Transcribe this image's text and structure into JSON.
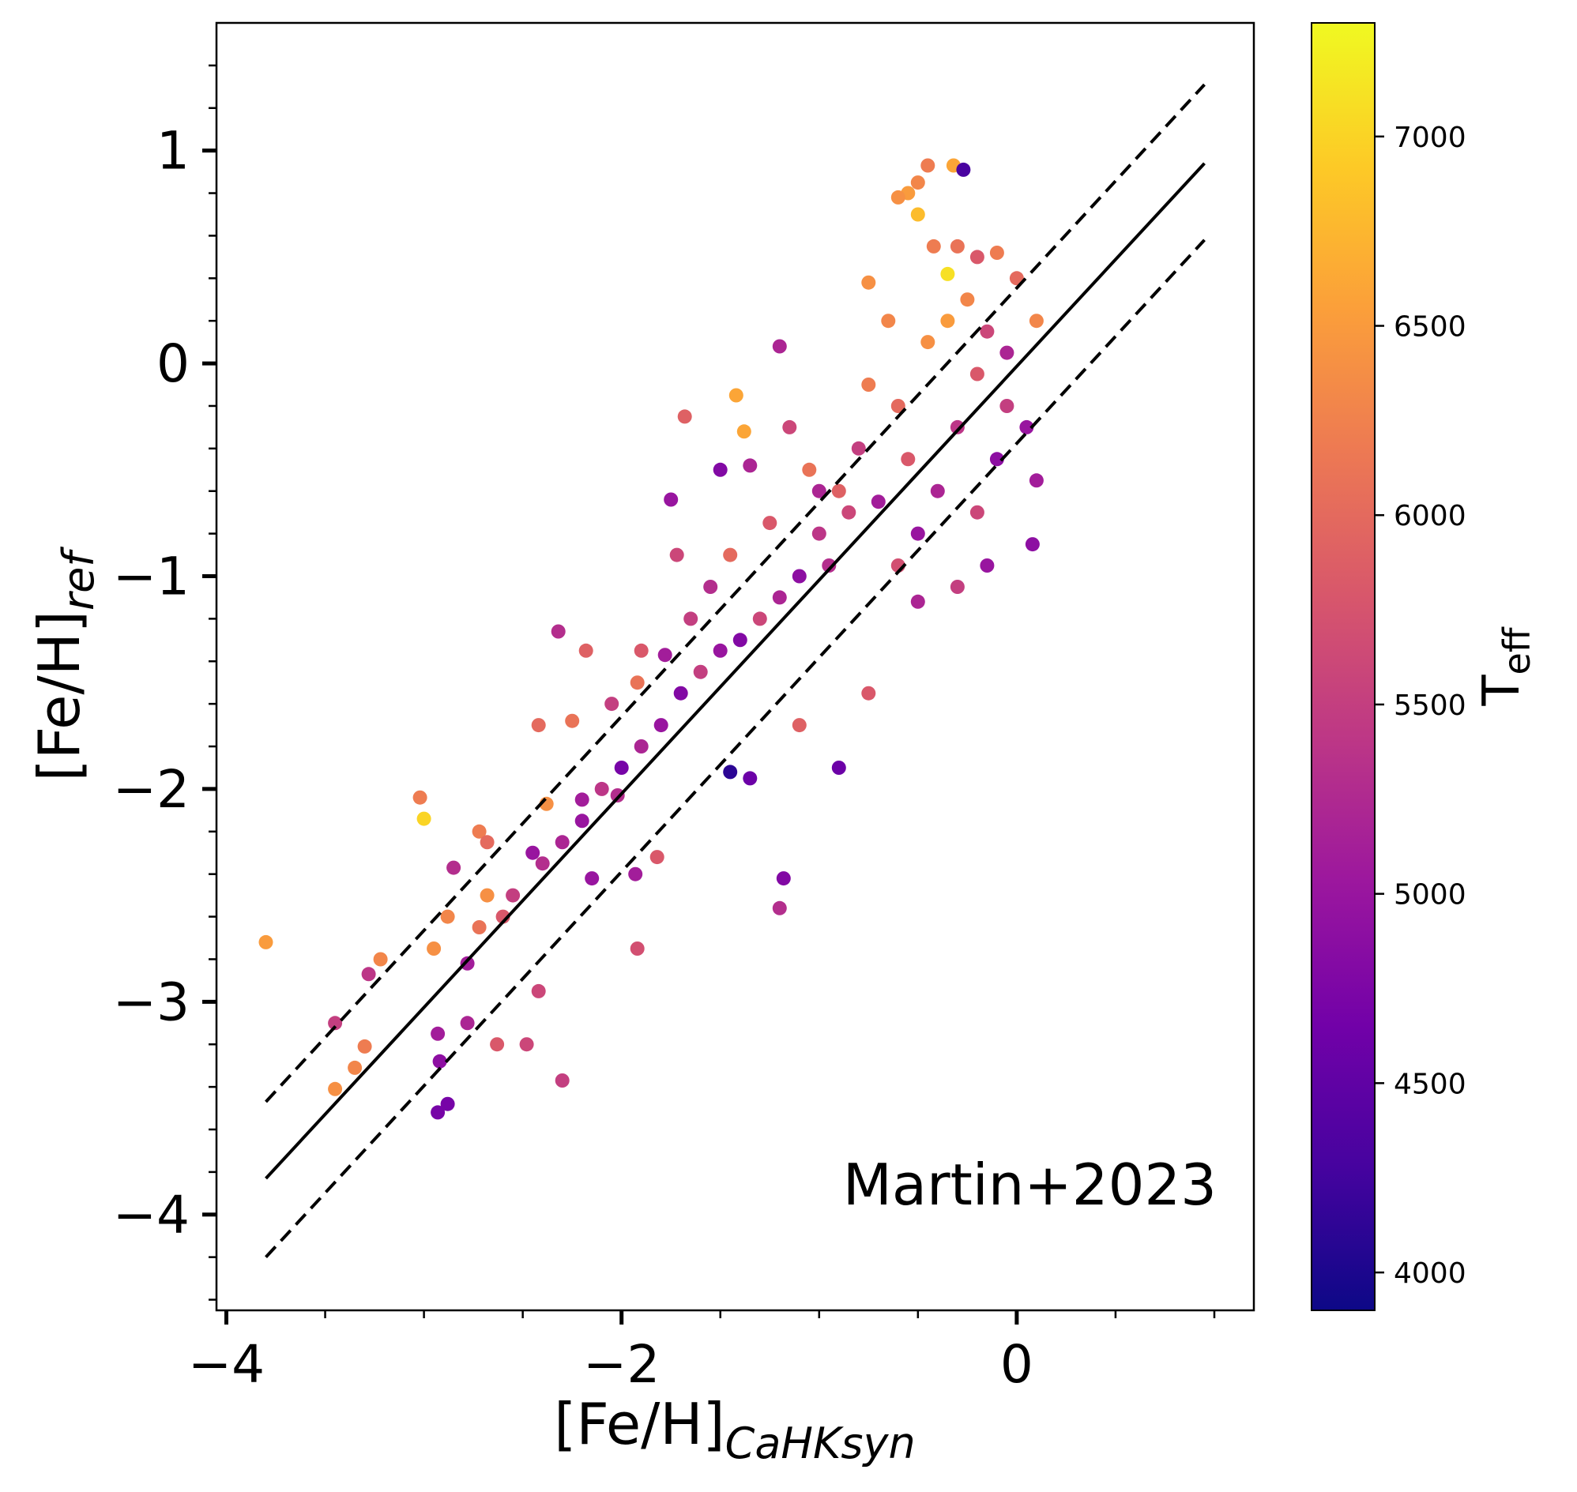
{
  "chart_data": {
    "type": "scatter",
    "xlabel": {
      "main": "[Fe/H]",
      "sub": "CaHKsyn"
    },
    "ylabel": {
      "main": "[Fe/H]",
      "sub": "ref"
    },
    "xlim": [
      -4.05,
      1.2
    ],
    "ylim": [
      -4.45,
      1.6
    ],
    "xticks": [
      -4,
      -2,
      0
    ],
    "xtick_labels": [
      "−4",
      "−2",
      "0"
    ],
    "yticks": [
      1,
      0,
      -1,
      -2,
      -3,
      -4
    ],
    "ytick_labels": [
      "1",
      "0",
      "−1",
      "−2",
      "−3",
      "−4"
    ],
    "annotation": "Martin+2023",
    "lines": [
      {
        "name": "one-to-one",
        "style": "solid",
        "x": [
          -3.8,
          0.95
        ],
        "y": [
          -3.83,
          0.94
        ]
      },
      {
        "name": "upper-bound",
        "style": "dashed",
        "x": [
          -3.8,
          0.95
        ],
        "y": [
          -3.47,
          1.31
        ]
      },
      {
        "name": "lower-bound",
        "style": "dashed",
        "x": [
          -3.8,
          0.95
        ],
        "y": [
          -4.2,
          0.58
        ]
      }
    ],
    "colorbar": {
      "label_main": "T",
      "label_sub": "eff",
      "range": [
        3900,
        7300
      ],
      "ticks": [
        4000,
        4500,
        5000,
        5500,
        6000,
        6500,
        7000
      ],
      "tick_labels": [
        "4000",
        "4500",
        "5000",
        "5500",
        "6000",
        "6500",
        "7000"
      ],
      "colormap": "plasma",
      "stops": [
        "#0d0887",
        "#46039f",
        "#7201a8",
        "#9c179e",
        "#bd3786",
        "#d8576b",
        "#ed7953",
        "#fb9f3a",
        "#fdca26",
        "#f0f921"
      ]
    },
    "sample_points": {
      "description": "[x, y, Teff]",
      "points": [
        [
          -3.8,
          -2.72,
          6500
        ],
        [
          -3.45,
          -3.41,
          6400
        ],
        [
          -3.35,
          -3.31,
          6300
        ],
        [
          -3.3,
          -3.21,
          6200
        ],
        [
          -3.45,
          -3.1,
          5500
        ],
        [
          -3.28,
          -2.87,
          5400
        ],
        [
          -3.22,
          -2.8,
          6300
        ],
        [
          -2.93,
          -3.52,
          4700
        ],
        [
          -2.88,
          -3.48,
          4700
        ],
        [
          -2.92,
          -3.28,
          4900
        ],
        [
          -2.93,
          -3.15,
          5100
        ],
        [
          -2.78,
          -3.1,
          5200
        ],
        [
          -2.63,
          -3.2,
          5800
        ],
        [
          -2.48,
          -3.2,
          5600
        ],
        [
          -2.3,
          -3.37,
          5500
        ],
        [
          -2.42,
          -2.95,
          5600
        ],
        [
          -2.95,
          -2.75,
          6400
        ],
        [
          -2.88,
          -2.6,
          6300
        ],
        [
          -2.78,
          -2.82,
          5100
        ],
        [
          -2.68,
          -2.5,
          6400
        ],
        [
          -2.72,
          -2.65,
          6100
        ],
        [
          -2.85,
          -2.37,
          5300
        ],
        [
          -3.0,
          -2.14,
          7000
        ],
        [
          -3.02,
          -2.04,
          6200
        ],
        [
          -2.72,
          -2.2,
          6200
        ],
        [
          -2.68,
          -2.25,
          6000
        ],
        [
          -2.38,
          -2.07,
          6400
        ],
        [
          -2.42,
          -1.7,
          6000
        ],
        [
          -2.25,
          -1.68,
          6100
        ],
        [
          -2.05,
          -1.6,
          5500
        ],
        [
          -1.92,
          -1.5,
          6100
        ],
        [
          -1.9,
          -1.35,
          5800
        ],
        [
          -2.18,
          -1.35,
          5900
        ],
        [
          -2.32,
          -1.26,
          5300
        ],
        [
          -1.78,
          -1.37,
          5100
        ],
        [
          -1.72,
          -0.9,
          5600
        ],
        [
          -1.75,
          -0.64,
          5000
        ],
        [
          -1.42,
          -0.15,
          6600
        ],
        [
          -1.38,
          -0.32,
          6600
        ],
        [
          -1.68,
          -0.25,
          5900
        ],
        [
          -1.2,
          0.08,
          5200
        ],
        [
          -1.5,
          -0.5,
          4800
        ],
        [
          -1.35,
          -0.48,
          5200
        ],
        [
          -1.15,
          -0.3,
          5600
        ],
        [
          -1.0,
          -0.6,
          5200
        ],
        [
          -0.5,
          0.7,
          6800
        ],
        [
          -0.55,
          0.8,
          6500
        ],
        [
          -0.5,
          0.85,
          6300
        ],
        [
          -0.45,
          0.93,
          6200
        ],
        [
          -0.32,
          0.93,
          6600
        ],
        [
          -0.27,
          0.91,
          4300
        ],
        [
          -0.6,
          0.78,
          6400
        ],
        [
          -0.35,
          0.42,
          7100
        ],
        [
          -0.42,
          0.55,
          6200
        ],
        [
          -0.75,
          0.38,
          6400
        ],
        [
          -0.3,
          0.55,
          6100
        ],
        [
          -0.2,
          0.5,
          5800
        ],
        [
          -0.1,
          0.52,
          6200
        ],
        [
          -1.45,
          -1.92,
          4100
        ],
        [
          -1.35,
          -1.95,
          4600
        ],
        [
          -1.18,
          -2.42,
          4800
        ],
        [
          -1.2,
          -2.56,
          5300
        ],
        [
          -1.92,
          -2.75,
          5700
        ],
        [
          -1.93,
          -2.4,
          5100
        ],
        [
          -2.02,
          -2.03,
          5300
        ],
        [
          -1.82,
          -2.32,
          5800
        ],
        [
          -2.2,
          -2.05,
          5100
        ],
        [
          -2.45,
          -2.3,
          5000
        ],
        [
          -2.15,
          -2.42,
          5000
        ],
        [
          -0.9,
          -1.9,
          4600
        ],
        [
          -0.75,
          -1.55,
          5800
        ],
        [
          -1.1,
          -1.7,
          5900
        ],
        [
          -0.5,
          -1.12,
          5200
        ],
        [
          -0.3,
          -1.05,
          5500
        ],
        [
          -0.15,
          -0.95,
          5000
        ],
        [
          0.08,
          -0.85,
          4900
        ],
        [
          0.1,
          -0.55,
          5100
        ],
        [
          0.1,
          0.2,
          6300
        ],
        [
          0.0,
          0.4,
          6000
        ],
        [
          -0.05,
          -0.2,
          5500
        ],
        [
          -0.2,
          -0.05,
          5800
        ],
        [
          -0.45,
          0.1,
          6400
        ],
        [
          -0.6,
          -0.2,
          6000
        ],
        [
          -0.8,
          -0.4,
          5500
        ],
        [
          -0.9,
          -0.6,
          5900
        ],
        [
          -1.0,
          -0.8,
          5400
        ],
        [
          -1.1,
          -1.0,
          4900
        ],
        [
          -1.2,
          -1.1,
          5200
        ],
        [
          -1.3,
          -1.2,
          5600
        ],
        [
          -1.4,
          -1.3,
          4800
        ],
        [
          -1.5,
          -1.35,
          5000
        ],
        [
          -1.6,
          -1.45,
          5500
        ],
        [
          -1.7,
          -1.55,
          4800
        ],
        [
          -1.8,
          -1.7,
          5000
        ],
        [
          -1.9,
          -1.8,
          5200
        ],
        [
          -2.0,
          -1.9,
          4700
        ],
        [
          -2.1,
          -2.0,
          5400
        ],
        [
          -2.2,
          -2.15,
          5000
        ],
        [
          -2.3,
          -2.25,
          5200
        ],
        [
          -2.4,
          -2.35,
          5300
        ],
        [
          -2.55,
          -2.5,
          5500
        ],
        [
          -2.6,
          -2.6,
          5800
        ],
        [
          -0.25,
          0.3,
          6300
        ],
        [
          -0.35,
          0.2,
          6500
        ],
        [
          -0.15,
          0.15,
          5600
        ],
        [
          -0.05,
          0.05,
          5200
        ],
        [
          -0.3,
          -0.3,
          5400
        ],
        [
          -0.55,
          -0.45,
          5800
        ],
        [
          -0.7,
          -0.65,
          5100
        ],
        [
          -0.85,
          -0.7,
          5600
        ],
        [
          -0.95,
          -0.95,
          5300
        ],
        [
          -1.05,
          -0.5,
          6100
        ],
        [
          -0.75,
          -0.1,
          6200
        ],
        [
          -0.65,
          0.2,
          6300
        ],
        [
          -0.5,
          -0.8,
          5000
        ],
        [
          -0.4,
          -0.6,
          5200
        ],
        [
          -0.1,
          -0.45,
          4900
        ],
        [
          0.05,
          -0.3,
          5000
        ],
        [
          -0.2,
          -0.7,
          5600
        ],
        [
          -0.6,
          -0.95,
          5700
        ],
        [
          -1.25,
          -0.75,
          5800
        ],
        [
          -1.45,
          -0.9,
          6000
        ],
        [
          -1.55,
          -1.05,
          5300
        ],
        [
          -1.65,
          -1.2,
          5500
        ]
      ]
    }
  }
}
